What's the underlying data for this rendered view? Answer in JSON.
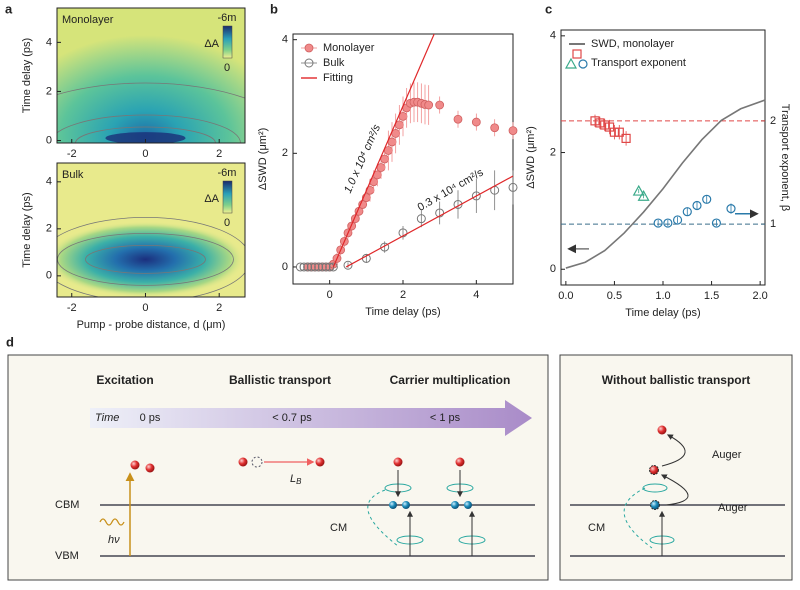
{
  "chart_data": [
    {
      "type": "heatmap",
      "panel": "a",
      "annotation": "Monolayer",
      "ylabel": "Time delay (ps)",
      "xlim": [
        -2.4,
        2.7
      ],
      "xticks": [
        -2,
        0,
        2
      ],
      "ylim": [
        -0.1,
        5.4
      ],
      "yticks": [
        0,
        2,
        4
      ],
      "colorbar": {
        "label": "ΔA",
        "ticks": [
          "-6m",
          "0"
        ]
      }
    },
    {
      "type": "heatmap",
      "annotation": "Bulk",
      "ylabel": "Time delay (ps)",
      "xlabel": "Pump - probe distance, d (μm)",
      "xlim": [
        -2.4,
        2.7
      ],
      "xticks": [
        -2,
        0,
        2
      ],
      "ylim": [
        -0.9,
        4.8
      ],
      "yticks": [
        0,
        2,
        4
      ],
      "colorbar": {
        "label": "ΔA",
        "ticks": [
          "-6m",
          "0"
        ]
      }
    },
    {
      "type": "scatter",
      "panel": "b",
      "xlabel": "Time delay (ps)",
      "ylabel": "ΔSWD (μm²)",
      "xlim": [
        -1,
        5
      ],
      "xticks": [
        0,
        2,
        4
      ],
      "ylim": [
        -0.3,
        4.1
      ],
      "yticks": [
        0,
        2,
        4
      ],
      "legend": "upper left",
      "annotations": [
        "1.0 x 10⁴ cm²/s",
        "0.3 x 10⁴ cm²/s"
      ],
      "series": [
        {
          "name": "Monolayer",
          "color": "#f08a8a",
          "marker": "filled",
          "x": [
            -0.6,
            -0.5,
            -0.4,
            -0.3,
            -0.2,
            -0.1,
            0,
            0.1,
            0.2,
            0.3,
            0.4,
            0.5,
            0.6,
            0.7,
            0.8,
            0.9,
            1.0,
            1.1,
            1.2,
            1.3,
            1.4,
            1.5,
            1.6,
            1.7,
            1.8,
            1.9,
            2.0,
            2.1,
            2.2,
            2.3,
            2.4,
            2.5,
            2.6,
            2.7,
            3.0,
            3.5,
            4.0,
            4.5,
            5.0
          ],
          "values": [
            0,
            0,
            0,
            0,
            0,
            0,
            0,
            0.05,
            0.15,
            0.3,
            0.45,
            0.6,
            0.72,
            0.85,
            0.98,
            1.1,
            1.22,
            1.35,
            1.5,
            1.62,
            1.75,
            1.9,
            2.05,
            2.2,
            2.35,
            2.5,
            2.65,
            2.8,
            2.88,
            2.9,
            2.9,
            2.88,
            2.86,
            2.85,
            2.85,
            2.6,
            2.55,
            2.45,
            2.4
          ],
          "errors": [
            0.05,
            0.05,
            0.05,
            0.05,
            0.05,
            0.05,
            0.05,
            0.1,
            0.1,
            0.1,
            0.1,
            0.1,
            0.1,
            0.1,
            0.1,
            0.1,
            0.1,
            0.2,
            0.2,
            0.2,
            0.2,
            0.2,
            0.35,
            0.35,
            0.35,
            0.35,
            0.35,
            0.35,
            0.35,
            0.35,
            0.35,
            0.35,
            0.35,
            0.35,
            0.15,
            0.15,
            0.15,
            0.15,
            0.15
          ]
        },
        {
          "name": "Bulk",
          "color": "#777777",
          "marker": "hollow",
          "x": [
            -0.8,
            -0.7,
            -0.6,
            -0.5,
            -0.4,
            -0.3,
            -0.2,
            -0.1,
            0,
            0.1,
            0.5,
            1.0,
            1.5,
            2.0,
            2.5,
            3.0,
            3.5,
            4.0,
            4.5,
            5.0
          ],
          "values": [
            0,
            0,
            0,
            0,
            0,
            0,
            0,
            0,
            0,
            0,
            0.03,
            0.15,
            0.35,
            0.6,
            0.85,
            0.95,
            1.1,
            1.25,
            1.35,
            1.4
          ],
          "errors": [
            0.05,
            0.05,
            0.05,
            0.05,
            0.05,
            0.05,
            0.05,
            0.05,
            0.05,
            0.05,
            0.05,
            0.08,
            0.1,
            0.12,
            0.15,
            0.2,
            0.25,
            0.3,
            0.35,
            0.3
          ]
        },
        {
          "name": "Fitting",
          "color": "#e0282a",
          "lines": [
            {
              "x": [
                0.1,
                2.85
              ],
              "values": [
                0,
                4.1
              ]
            },
            {
              "x": [
                0.45,
                5
              ],
              "values": [
                0,
                1.6
              ]
            }
          ]
        }
      ]
    },
    {
      "type": "line",
      "panel": "c",
      "xlabel": "Time delay (ps)",
      "ylabel": "ΔSWD (μm²)",
      "y2label": "Transport exponent, β",
      "xlim": [
        -0.05,
        2.05
      ],
      "xticks": [
        {
          "value": 0,
          "label": "0.0"
        },
        0.5,
        {
          "value": 1,
          "label": "1.0"
        },
        1.5,
        {
          "value": 2,
          "label": "2.0"
        }
      ],
      "ylim": [
        -0.27,
        4.1
      ],
      "yticks": [
        0,
        2,
        4
      ],
      "y2lim": [
        0.41,
        2.88
      ],
      "y2ticks": [
        1,
        2
      ],
      "legend": "upper left",
      "hlines": [
        {
          "value": 2,
          "color": "#e04848",
          "axis": "y2"
        },
        {
          "value": 1,
          "color": "#3a6e8a",
          "axis": "y2"
        }
      ],
      "series": [
        {
          "name": "SWD, monolayer",
          "color": "#777777",
          "x": [
            0,
            0.2,
            0.4,
            0.6,
            0.8,
            1.0,
            1.2,
            1.4,
            1.6,
            1.8,
            2.05
          ],
          "values": [
            0.02,
            0.12,
            0.32,
            0.62,
            0.98,
            1.38,
            1.82,
            2.22,
            2.55,
            2.75,
            2.9
          ]
        },
        {
          "name": "Transport exponent",
          "axis": "y2",
          "groups": [
            {
              "marker": "square",
              "color": "#e04848",
              "x": [
                0.3,
                0.35,
                0.4,
                0.45,
                0.5,
                0.55,
                0.62
              ],
              "values": [
                2.0,
                1.98,
                1.96,
                1.94,
                1.89,
                1.89,
                1.83
              ],
              "errors": [
                0.06,
                0.06,
                0.06,
                0.07,
                0.07,
                0.07,
                0.07
              ]
            },
            {
              "marker": "triangle",
              "color": "#3aaa8a",
              "x": [
                0.75,
                0.8
              ],
              "values": [
                1.32,
                1.27
              ],
              "errors": [
                0.02,
                0.02
              ]
            },
            {
              "marker": "circle",
              "color": "#2a7aaa",
              "x": [
                0.95,
                1.05,
                1.15,
                1.25,
                1.35,
                1.45,
                1.55,
                1.7
              ],
              "values": [
                1.01,
                1.01,
                1.04,
                1.12,
                1.18,
                1.24,
                1.01,
                1.15
              ],
              "errors": [
                0.03,
                0.03,
                0.03,
                0.04,
                0.04,
                0.04,
                0.03,
                0.05
              ]
            }
          ]
        }
      ]
    }
  ],
  "diagram": {
    "panel": "d",
    "left": {
      "stages": [
        "Excitation",
        "Ballistic transport",
        "Carrier multiplication"
      ],
      "time_label": "Time",
      "times": [
        "0 ps",
        "< 0.7 ps",
        "< 1 ps"
      ],
      "cbm": "CBM",
      "vbm": "VBM",
      "photon": "hν",
      "distance": {
        "main": "L",
        "sub": "B"
      },
      "cm": "CM"
    },
    "right": {
      "title": "Without ballistic transport",
      "auger": [
        "Auger",
        "Auger"
      ],
      "cm": "CM"
    }
  }
}
